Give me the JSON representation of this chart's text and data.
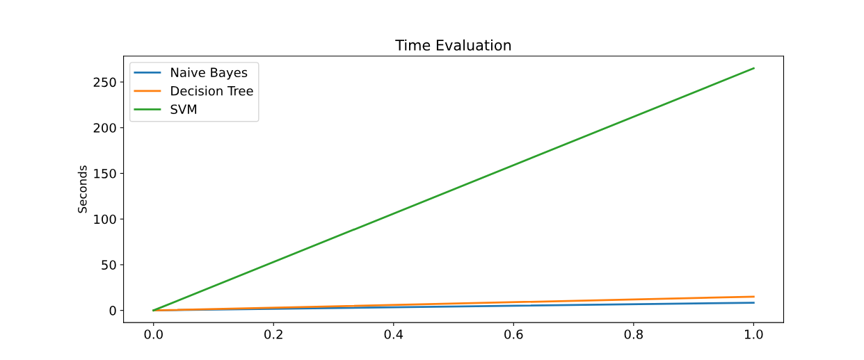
{
  "chart_data": {
    "type": "line",
    "title": "Time Evaluation",
    "ylabel": "Seconds",
    "x": [
      0,
      1
    ],
    "series": [
      {
        "name": "Naive Bayes",
        "color": "#1f77b4",
        "values": [
          0,
          8.4
        ]
      },
      {
        "name": "Decision Tree",
        "color": "#ff7f0e",
        "values": [
          0,
          15
        ]
      },
      {
        "name": "SVM",
        "color": "#2ca02c",
        "values": [
          0,
          265
        ]
      }
    ],
    "xlim": [
      -0.05,
      1.05
    ],
    "xticks": [
      {
        "value": 0,
        "label": "0.0"
      },
      {
        "value": 0.2,
        "label": "0.2"
      },
      {
        "value": 0.4,
        "label": "0.4"
      },
      {
        "value": 0.6,
        "label": "0.6"
      },
      {
        "value": 0.8,
        "label": "0.8"
      },
      {
        "value": 1,
        "label": "1.0"
      }
    ],
    "ylim": [
      -13.3,
      278.3
    ],
    "yticks": [
      0,
      50,
      100,
      150,
      200,
      250
    ],
    "legend": "top left",
    "grid": false
  }
}
